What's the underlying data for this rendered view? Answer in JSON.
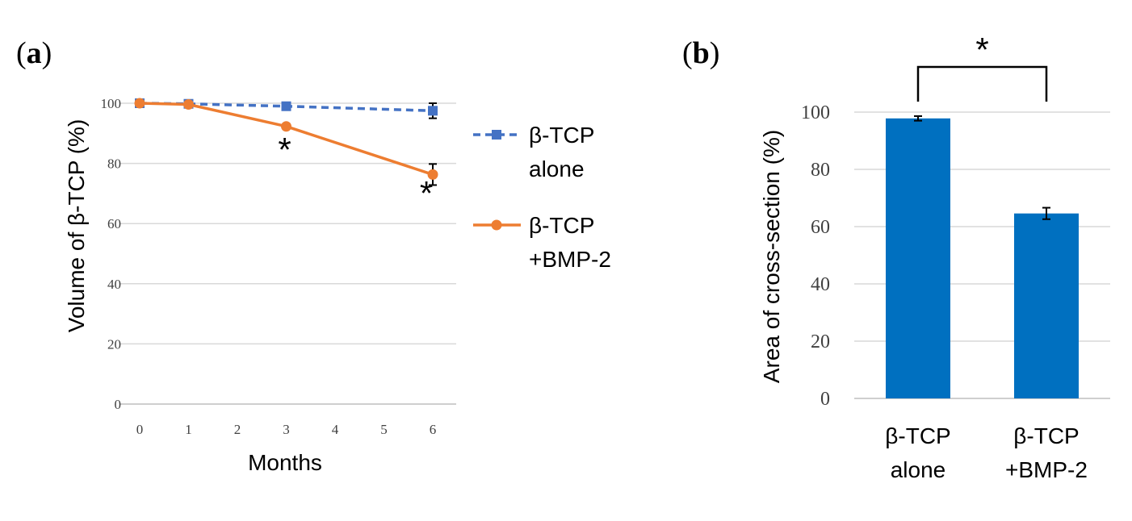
{
  "panels": {
    "a": {
      "open": "(",
      "letter": "a",
      "close": ")"
    },
    "b": {
      "open": "(",
      "letter": "b",
      "close": ")"
    }
  },
  "chart_data": [
    {
      "type": "line",
      "xlabel": "Months",
      "ylabel": "Volume of β-TCP (%)",
      "xlim": [
        0,
        6.5
      ],
      "ylim": [
        0,
        100
      ],
      "xticks": [
        "0",
        "1",
        "2",
        "3",
        "4",
        "5",
        "6"
      ],
      "yticks": [
        "0",
        "20",
        "40",
        "60",
        "80",
        "100"
      ],
      "grid": true,
      "legend_position": "right",
      "series": [
        {
          "legend": [
            "β-TCP",
            "alone"
          ],
          "color": "#4472C4",
          "style": "dashed",
          "marker": "square",
          "x": [
            0,
            1,
            3,
            6
          ],
          "y": [
            100,
            99.8,
            99,
            97.5
          ],
          "error": [
            0,
            0,
            0,
            2.5
          ]
        },
        {
          "legend": [
            "β-TCP",
            "+BMP-2"
          ],
          "color": "#ED7D31",
          "style": "solid",
          "marker": "circle",
          "x": [
            0,
            1,
            3,
            6
          ],
          "y": [
            100,
            99.6,
            92.3,
            76.3
          ],
          "error": [
            0,
            0,
            0,
            3.5
          ]
        }
      ],
      "annotations": [
        {
          "text": "*",
          "x": 3
        },
        {
          "text": "*",
          "x": 6
        }
      ]
    },
    {
      "type": "bar",
      "ylabel": "Area of cross-section (%)",
      "ylim": [
        0,
        100
      ],
      "yticks": [
        "0",
        "20",
        "40",
        "60",
        "80",
        "100"
      ],
      "grid": true,
      "color": "#0070C0",
      "categories": [
        [
          "β-TCP",
          "alone"
        ],
        [
          "β-TCP",
          "+BMP-2"
        ]
      ],
      "values": [
        97.8,
        64.6
      ],
      "error": [
        0.8,
        2.0
      ],
      "significance": "*"
    }
  ]
}
